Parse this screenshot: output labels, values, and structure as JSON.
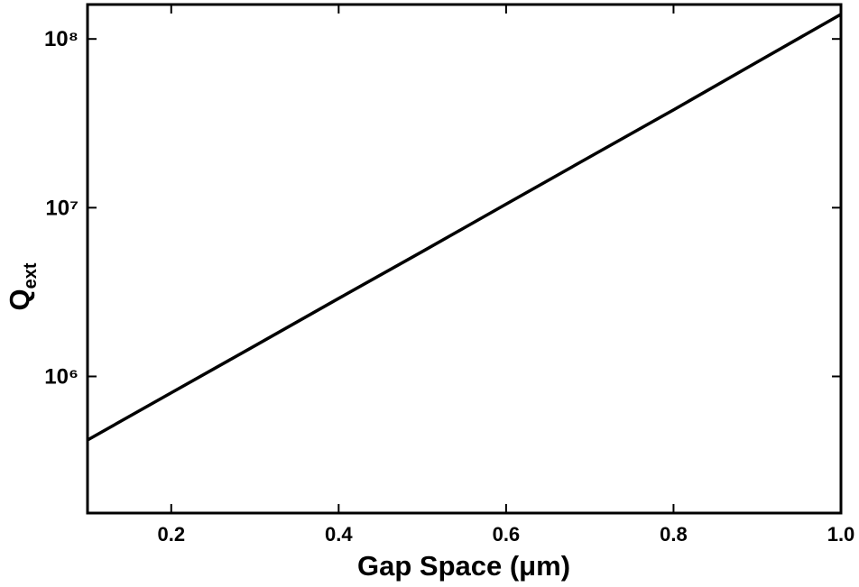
{
  "chart_data": {
    "type": "line",
    "xlabel": "Gap Space (μm)",
    "ylabel": "Q",
    "ylabel_sub": "ext",
    "x": [
      0.1,
      0.2,
      0.3,
      0.4,
      0.5,
      0.6,
      0.7,
      0.8,
      0.9,
      1.0
    ],
    "series": [
      {
        "color": "#000000",
        "values": [
          420000,
          800000,
          1520000,
          2900000,
          5500000,
          10500000,
          20000000,
          38000000,
          73000000,
          140000000
        ]
      }
    ],
    "xlim": [
      0.1,
      1.0
    ],
    "xticks": [
      0.2,
      0.4,
      0.6,
      0.8,
      {
        "value": 1.0,
        "label": "1.0"
      }
    ],
    "ylim": [
      155000,
      160000000
    ],
    "yticks": [
      {
        "value": 1000000,
        "label": "10⁶"
      },
      {
        "value": 10000000,
        "label": "10⁷"
      },
      {
        "value": 100000000,
        "label": "10⁸"
      }
    ],
    "ylog": true
  }
}
